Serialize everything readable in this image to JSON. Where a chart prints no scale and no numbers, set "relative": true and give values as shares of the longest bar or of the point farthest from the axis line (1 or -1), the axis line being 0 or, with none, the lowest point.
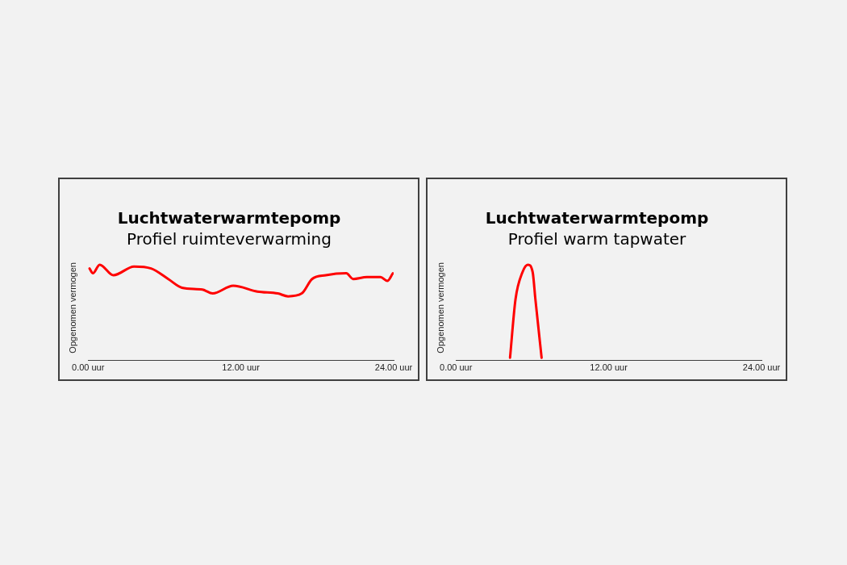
{
  "chart_data": [
    {
      "type": "line",
      "title": "Luchtwaterwarmtepomp",
      "subtitle": "Profiel ruimteverwarming",
      "ylabel": "Opgenomen vermogen",
      "relative": true,
      "marker": "none",
      "xlim": [
        0,
        24
      ],
      "xticks": [
        {
          "value": 0,
          "label": "0.00 uur"
        },
        {
          "value": 12,
          "label": "12.00 uur"
        },
        {
          "value": 24,
          "label": "24.00 uur"
        }
      ],
      "x": [
        0.11,
        0.38,
        0.91,
        1.99,
        3.61,
        4.95,
        6.3,
        7.37,
        8.98,
        9.79,
        11.4,
        13.29,
        14.9,
        15.71,
        16.78,
        17.59,
        18.67,
        20.28,
        20.82,
        21.89,
        22.97,
        23.5,
        23.94
      ],
      "series": [
        {
          "color": "#ff0000",
          "values": [
            0.96,
            0.91,
            1,
            0.89,
            0.98,
            0.96,
            0.85,
            0.76,
            0.74,
            0.7,
            0.78,
            0.72,
            0.7,
            0.67,
            0.7,
            0.85,
            0.89,
            0.91,
            0.85,
            0.87,
            0.87,
            0.83,
            0.91
          ]
        }
      ]
    },
    {
      "type": "line",
      "title": "Luchtwaterwarmtepomp",
      "subtitle": "Profiel warm tapwater",
      "ylabel": "Opgenomen vermogen",
      "relative": true,
      "marker": "none",
      "xlim": [
        0,
        24
      ],
      "xticks": [
        {
          "value": 0,
          "label": "0.00 uur"
        },
        {
          "value": 12,
          "label": "12.00 uur"
        },
        {
          "value": 24,
          "label": "24.00 uur"
        }
      ],
      "x": [
        4.25,
        4.68,
        5.22,
        5.65,
        6.03,
        6.24,
        6.73
      ],
      "series": [
        {
          "color": "#ff0000",
          "values": [
            0.03,
            0.64,
            0.92,
            1,
            0.92,
            0.64,
            0.03
          ]
        }
      ]
    }
  ]
}
